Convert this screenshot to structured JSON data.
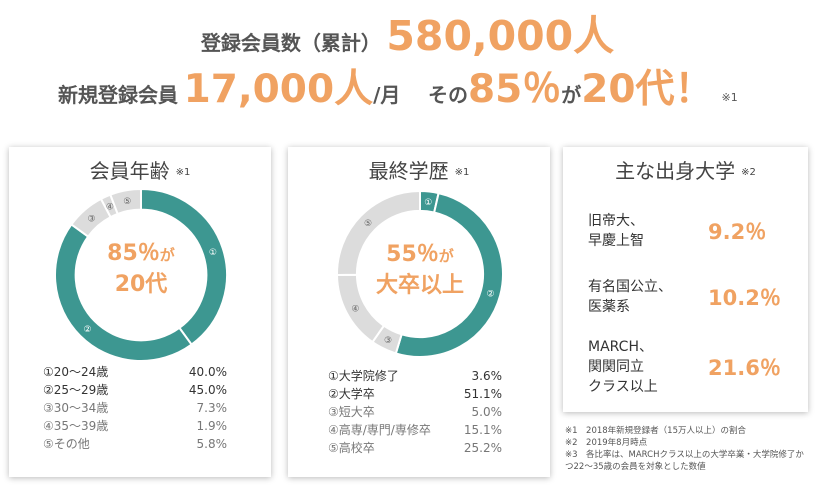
{
  "headline": {
    "line1_label": "登録会員数（累計）",
    "line1_value": "580,000人",
    "line2_label": "新規登録会員",
    "line2_value": "17,000人",
    "line2_unit": "/月",
    "line2_mid": "その",
    "line2_pct": "85％",
    "line2_ga": "が",
    "line2_age": "20代！",
    "line2_note": "※1"
  },
  "cards": {
    "age": {
      "title": "会員年齢",
      "note": "※1",
      "center_big": "85％",
      "center_small": "が",
      "center_line2": "20代"
    },
    "edu": {
      "title": "最終学歴",
      "note": "※1",
      "center_big": "55％",
      "center_small": "が",
      "center_line2": "大卒以上"
    },
    "uni": {
      "title": "主な出身大学",
      "note": "※2",
      "rows": [
        {
          "name_1": "旧帝大、",
          "name_2": "早慶上智",
          "name_3": "",
          "value": "9.2％"
        },
        {
          "name_1": "有名国公立、",
          "name_2": "医薬系",
          "name_3": "",
          "value": "10.2％"
        },
        {
          "name_1": "MARCH、",
          "name_2": "関関同立",
          "name_3": "クラス以上",
          "value": "21.6％"
        }
      ]
    }
  },
  "chart_data": [
    {
      "type": "pie",
      "title": "会員年齢",
      "categories": [
        "①20～24歳",
        "②25～29歳",
        "③30～34歳",
        "④35～39歳",
        "⑤その他"
      ],
      "markers": [
        "①",
        "②",
        "③",
        "④",
        "⑤"
      ],
      "values": [
        40.0,
        45.0,
        7.3,
        1.9,
        5.8
      ],
      "labels": [
        "40.0%",
        "45.0%",
        "7.3%",
        "1.9%",
        "5.8%"
      ],
      "colors": [
        "#3d9791",
        "#3d9791",
        "#dcdcdc",
        "#dcdcdc",
        "#dcdcdc"
      ]
    },
    {
      "type": "pie",
      "title": "最終学歴",
      "categories": [
        "①大学院修了",
        "②大学卒",
        "③短大卒",
        "④高専/専門/専修卒",
        "⑤高校卒"
      ],
      "markers": [
        "①",
        "②",
        "③",
        "④",
        "⑤"
      ],
      "values": [
        3.6,
        51.1,
        5.0,
        15.1,
        25.2
      ],
      "labels": [
        "3.6%",
        "51.1%",
        "5.0%",
        "15.1%",
        "25.2%"
      ],
      "colors": [
        "#3d9791",
        "#3d9791",
        "#dcdcdc",
        "#dcdcdc",
        "#dcdcdc"
      ]
    }
  ],
  "footnotes": [
    "※1　2018年新規登録者（15万人以上）の割合",
    "※2　2019年8月時点",
    "※3　各比率は、MARCHクラス以上の大学卒業・大学院修了かつ22～35歳の会員を対象とした数値"
  ]
}
